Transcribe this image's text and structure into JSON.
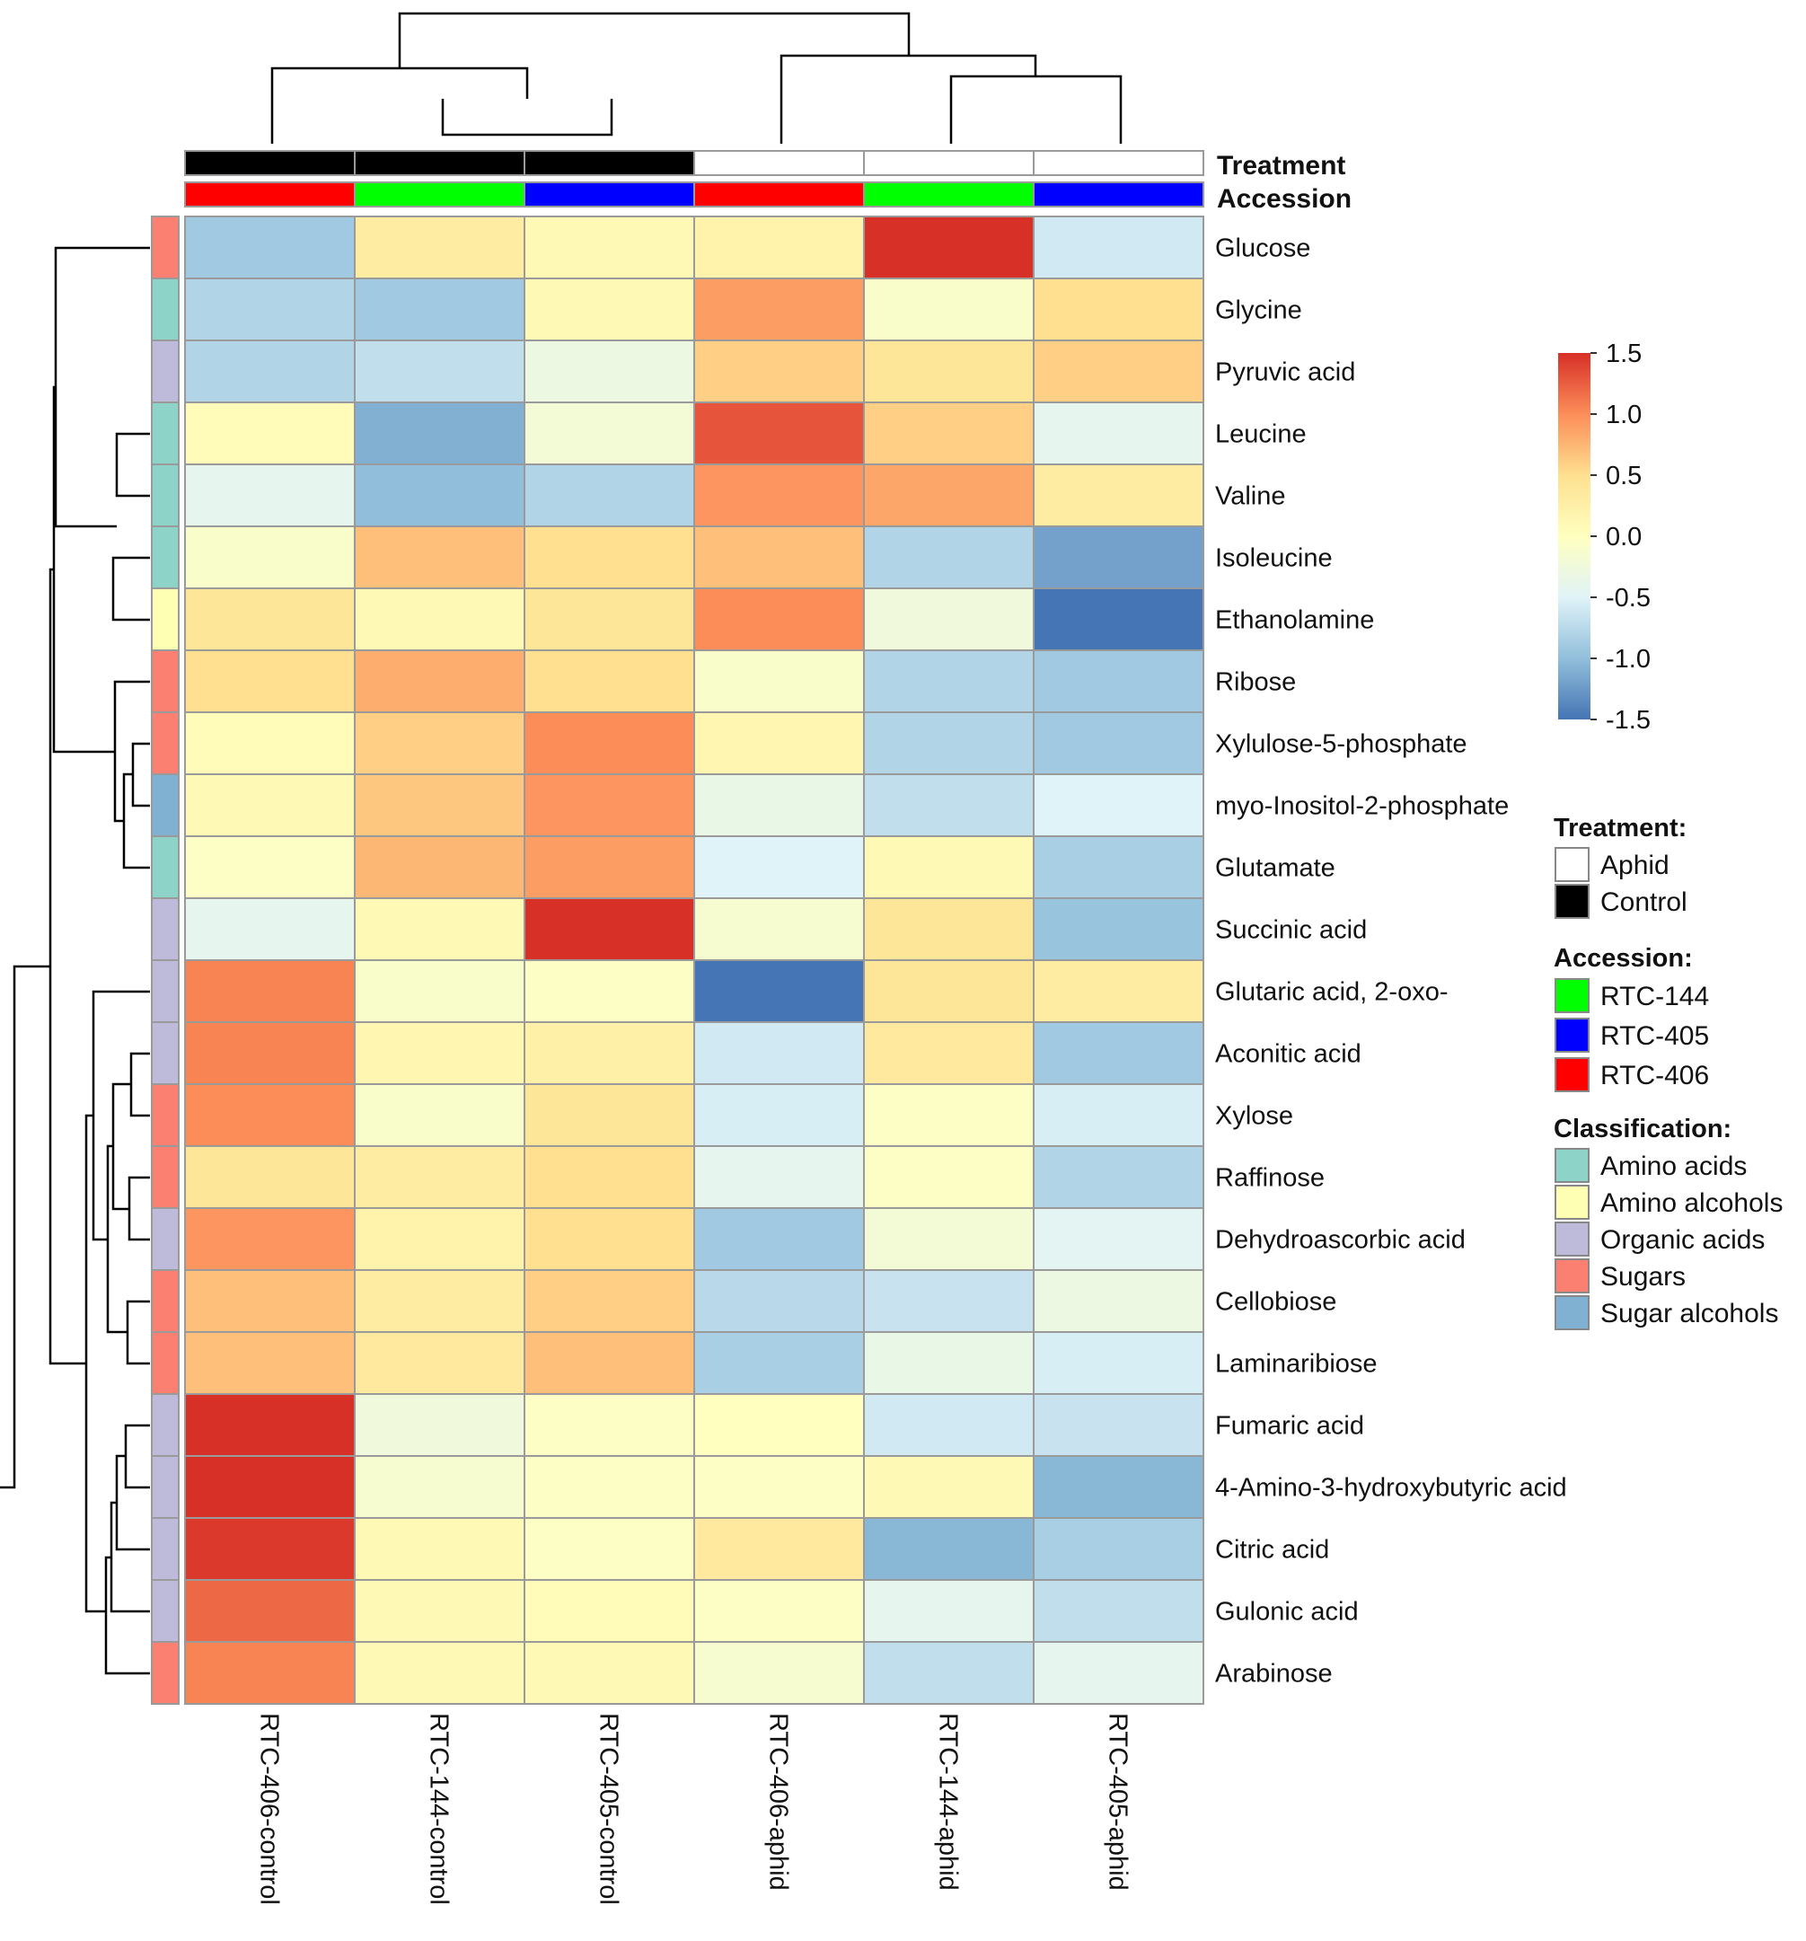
{
  "chart_data": {
    "type": "heatmap",
    "columns": [
      "RTC-406-control",
      "RTC-144-control",
      "RTC-405-control",
      "RTC-406-aphid",
      "RTC-144-aphid",
      "RTC-405-aphid"
    ],
    "column_treatment": [
      "Control",
      "Control",
      "Control",
      "Aphid",
      "Aphid",
      "Aphid"
    ],
    "column_accession": [
      "RTC-406",
      "RTC-144",
      "RTC-405",
      "RTC-406",
      "RTC-144",
      "RTC-405"
    ],
    "rows": [
      {
        "name": "Glucose",
        "class": "Sugars",
        "values": [
          -0.9,
          0.3,
          0.1,
          0.2,
          1.55,
          -0.6
        ]
      },
      {
        "name": "Glycine",
        "class": "Amino acids",
        "values": [
          -0.8,
          -0.9,
          0.1,
          0.9,
          -0.1,
          0.5
        ]
      },
      {
        "name": "Pyruvic acid",
        "class": "Organic acids",
        "values": [
          -0.8,
          -0.7,
          -0.3,
          0.6,
          0.4,
          0.6
        ]
      },
      {
        "name": "Leucine",
        "class": "Amino acids",
        "values": [
          0.05,
          -1.1,
          -0.2,
          1.3,
          0.6,
          -0.4
        ]
      },
      {
        "name": "Valine",
        "class": "Amino acids",
        "values": [
          -0.4,
          -1.0,
          -0.8,
          0.95,
          0.85,
          0.3
        ]
      },
      {
        "name": "Isoleucine",
        "class": "Amino acids",
        "values": [
          -0.1,
          0.7,
          0.5,
          0.7,
          -0.8,
          -1.2
        ]
      },
      {
        "name": "Ethanolamine",
        "class": "Amino alcohols",
        "values": [
          0.4,
          0.1,
          0.4,
          1.0,
          -0.25,
          -1.6
        ]
      },
      {
        "name": "Ribose",
        "class": "Sugars",
        "values": [
          0.5,
          0.8,
          0.5,
          -0.1,
          -0.8,
          -0.9
        ]
      },
      {
        "name": "Xylulose-5-phosphate",
        "class": "Sugars",
        "values": [
          0.05,
          0.6,
          1.0,
          0.15,
          -0.8,
          -0.9
        ]
      },
      {
        "name": "myo-Inositol-2-phosphate",
        "class": "Sugar alcohols",
        "values": [
          0.1,
          0.65,
          0.95,
          -0.35,
          -0.7,
          -0.5
        ]
      },
      {
        "name": "Glutamate",
        "class": "Amino acids",
        "values": [
          -0.05,
          0.75,
          0.9,
          -0.5,
          0.1,
          -0.85
        ]
      },
      {
        "name": "Succinic acid",
        "class": "Organic acids",
        "values": [
          -0.4,
          0.1,
          1.5,
          -0.15,
          0.4,
          -0.95
        ]
      },
      {
        "name": "Glutaric acid, 2-oxo-",
        "class": "Organic acids",
        "values": [
          1.05,
          -0.1,
          -0.05,
          -1.5,
          0.4,
          0.3
        ]
      },
      {
        "name": "Aconitic acid",
        "class": "Organic acids",
        "values": [
          1.05,
          0.15,
          0.25,
          -0.6,
          0.35,
          -0.9
        ]
      },
      {
        "name": "Xylose",
        "class": "Sugars",
        "values": [
          1.0,
          -0.1,
          0.4,
          -0.55,
          -0.05,
          -0.55
        ]
      },
      {
        "name": "Raffinose",
        "class": "Sugars",
        "values": [
          0.4,
          0.3,
          0.5,
          -0.4,
          -0.05,
          -0.8
        ]
      },
      {
        "name": "Dehydroascorbic acid",
        "class": "Organic acids",
        "values": [
          0.95,
          0.2,
          0.5,
          -0.9,
          -0.2,
          -0.45
        ]
      },
      {
        "name": "Cellobiose",
        "class": "Sugars",
        "values": [
          0.7,
          0.3,
          0.6,
          -0.75,
          -0.65,
          -0.3
        ]
      },
      {
        "name": "Laminaribiose",
        "class": "Sugars",
        "values": [
          0.7,
          0.35,
          0.7,
          -0.85,
          -0.35,
          -0.55
        ]
      },
      {
        "name": "Fumaric acid",
        "class": "Organic acids",
        "values": [
          1.6,
          -0.25,
          -0.05,
          0.0,
          -0.6,
          -0.65
        ]
      },
      {
        "name": "4-Amino-3-hydroxybutyric acid",
        "class": "Organic acids",
        "values": [
          1.55,
          -0.15,
          -0.05,
          -0.05,
          0.1,
          -1.05
        ]
      },
      {
        "name": "Citric acid",
        "class": "Organic acids",
        "values": [
          1.45,
          0.1,
          -0.05,
          0.35,
          -1.05,
          -0.85
        ]
      },
      {
        "name": "Gulonic acid",
        "class": "Organic acids",
        "values": [
          1.2,
          0.1,
          0.05,
          -0.05,
          -0.4,
          -0.7
        ]
      },
      {
        "name": "Arabinose",
        "class": "Sugars",
        "values": [
          1.05,
          0.1,
          0.1,
          -0.15,
          -0.7,
          -0.4
        ]
      }
    ],
    "color_scale": {
      "min": -1.5,
      "max": 1.5,
      "ticks": [
        "1.5",
        "1.0",
        "0.5",
        "0.0",
        "-0.5",
        "-1.0",
        "-1.5"
      ]
    },
    "annotation_titles": {
      "treatment": "Treatment",
      "accession": "Accession"
    },
    "legend": {
      "treatment_title": "Treatment:",
      "treatment_items": [
        {
          "label": "Aphid",
          "color": "#FFFFFF"
        },
        {
          "label": "Control",
          "color": "#000000"
        }
      ],
      "accession_title": "Accession:",
      "accession_items": [
        {
          "label": "RTC-144",
          "color": "#00FF00"
        },
        {
          "label": "RTC-405",
          "color": "#0000FF"
        },
        {
          "label": "RTC-406",
          "color": "#FF0000"
        }
      ],
      "classification_title": "Classification:",
      "classification_items": [
        {
          "label": "Amino acids",
          "color": "#8DD3C7"
        },
        {
          "label": "Amino alcohols",
          "color": "#FFFFB3"
        },
        {
          "label": "Organic acids",
          "color": "#BEBADA"
        },
        {
          "label": "Sugars",
          "color": "#FB8072"
        },
        {
          "label": "Sugar alcohols",
          "color": "#80B1D3"
        }
      ]
    }
  }
}
